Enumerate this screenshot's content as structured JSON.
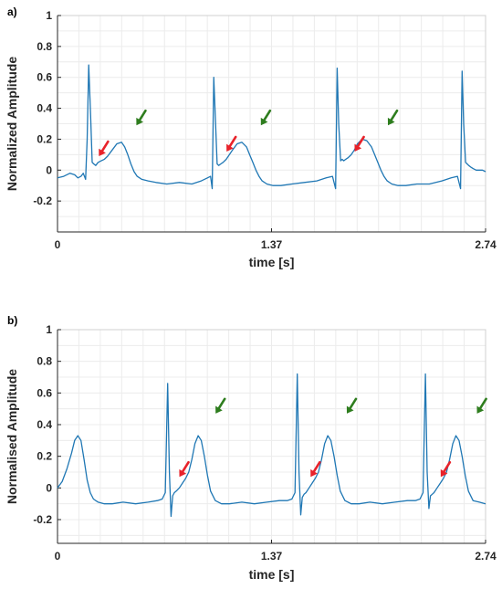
{
  "chart_data": [
    {
      "type": "line",
      "panel_label": "a)",
      "xlabel": "time [s]",
      "ylabel": "Normalized Amplitude",
      "xlim": [
        0,
        2.74
      ],
      "ylim": [
        -0.4,
        1
      ],
      "xticks": [
        0,
        1.37,
        2.74
      ],
      "xtick_labels": [
        "0",
        "1.37",
        "2.74"
      ],
      "yticks": [
        -0.2,
        0,
        0.2,
        0.4,
        0.6,
        0.8,
        1
      ],
      "ytick_labels": [
        "-0.2",
        "0",
        "0.2",
        "0.4",
        "0.6",
        "0.8",
        "1"
      ],
      "grid": true,
      "series": [
        {
          "color": "#1f77b4",
          "x": [
            0,
            0.04,
            0.08,
            0.11,
            0.13,
            0.15,
            0.165,
            0.18,
            0.19,
            0.2,
            0.212,
            0.222,
            0.232,
            0.245,
            0.26,
            0.28,
            0.3,
            0.32,
            0.35,
            0.38,
            0.41,
            0.43,
            0.45,
            0.47,
            0.49,
            0.51,
            0.54,
            0.58,
            0.63,
            0.7,
            0.78,
            0.86,
            0.92,
            0.96,
            0.98,
            0.99,
            1.0,
            1.012,
            1.022,
            1.032,
            1.045,
            1.06,
            1.08,
            1.1,
            1.12,
            1.15,
            1.18,
            1.21,
            1.23,
            1.25,
            1.27,
            1.29,
            1.31,
            1.34,
            1.38,
            1.43,
            1.5,
            1.58,
            1.66,
            1.72,
            1.76,
            1.78,
            1.79,
            1.8,
            1.812,
            1.822,
            1.832,
            1.845,
            1.86,
            1.88,
            1.9,
            1.92,
            1.95,
            1.98,
            2.01,
            2.03,
            2.05,
            2.07,
            2.09,
            2.11,
            2.14,
            2.18,
            2.23,
            2.3,
            2.38,
            2.46,
            2.52,
            2.56,
            2.58,
            2.59,
            2.6,
            2.612,
            2.622,
            2.632,
            2.645,
            2.66,
            2.68,
            2.7,
            2.72,
            2.74
          ],
          "y": [
            -0.05,
            -0.04,
            -0.02,
            -0.03,
            -0.05,
            -0.04,
            -0.02,
            -0.06,
            0.2,
            0.68,
            0.35,
            0.05,
            0.04,
            0.03,
            0.05,
            0.06,
            0.07,
            0.09,
            0.13,
            0.17,
            0.18,
            0.15,
            0.1,
            0.04,
            -0.01,
            -0.04,
            -0.06,
            -0.07,
            -0.08,
            -0.09,
            -0.08,
            -0.09,
            -0.07,
            -0.05,
            -0.04,
            -0.12,
            0.6,
            0.3,
            0.04,
            0.03,
            0.04,
            0.05,
            0.07,
            0.1,
            0.13,
            0.17,
            0.18,
            0.15,
            0.1,
            0.05,
            0.0,
            -0.04,
            -0.07,
            -0.09,
            -0.1,
            -0.1,
            -0.09,
            -0.08,
            -0.07,
            -0.05,
            -0.04,
            -0.12,
            0.66,
            0.3,
            0.06,
            0.07,
            0.06,
            0.07,
            0.08,
            0.1,
            0.13,
            0.17,
            0.2,
            0.19,
            0.15,
            0.1,
            0.05,
            0.0,
            -0.04,
            -0.07,
            -0.09,
            -0.1,
            -0.1,
            -0.09,
            -0.09,
            -0.07,
            -0.05,
            -0.04,
            -0.12,
            0.64,
            0.3,
            0.05,
            0.04,
            0.03,
            0.02,
            0.01,
            0.0,
            0.0,
            0.0,
            -0.01
          ]
        }
      ],
      "annotations": [
        {
          "type": "arrow",
          "color": "#e8222a",
          "x": 0.265,
          "y": 0.09
        },
        {
          "type": "arrow",
          "color": "#2e7d1e",
          "x": 0.505,
          "y": 0.29
        },
        {
          "type": "arrow",
          "color": "#e8222a",
          "x": 1.082,
          "y": 0.12
        },
        {
          "type": "arrow",
          "color": "#2e7d1e",
          "x": 1.302,
          "y": 0.29
        },
        {
          "type": "arrow",
          "color": "#e8222a",
          "x": 1.902,
          "y": 0.12
        },
        {
          "type": "arrow",
          "color": "#2e7d1e",
          "x": 2.115,
          "y": 0.29
        }
      ]
    },
    {
      "type": "line",
      "panel_label": "b)",
      "xlabel": "time [s]",
      "ylabel": "Normalised Amplitude",
      "xlim": [
        0,
        2.74
      ],
      "ylim": [
        -0.35,
        1
      ],
      "xticks": [
        0,
        1.37,
        2.74
      ],
      "xtick_labels": [
        "0",
        "1.37",
        "2.74"
      ],
      "yticks": [
        -0.2,
        0,
        0.2,
        0.4,
        0.6,
        0.8,
        1
      ],
      "ytick_labels": [
        "-0.2",
        "0",
        "0.2",
        "0.4",
        "0.6",
        "0.8",
        "1"
      ],
      "grid": true,
      "series": [
        {
          "color": "#1f77b4",
          "x": [
            0,
            0.03,
            0.06,
            0.09,
            0.11,
            0.13,
            0.15,
            0.17,
            0.19,
            0.21,
            0.23,
            0.26,
            0.3,
            0.35,
            0.42,
            0.5,
            0.58,
            0.64,
            0.67,
            0.69,
            0.705,
            0.716,
            0.727,
            0.737,
            0.748,
            0.76,
            0.78,
            0.8,
            0.82,
            0.84,
            0.86,
            0.88,
            0.9,
            0.92,
            0.94,
            0.96,
            0.98,
            1.01,
            1.05,
            1.1,
            1.18,
            1.26,
            1.34,
            1.42,
            1.47,
            1.5,
            1.52,
            1.535,
            1.546,
            1.557,
            1.567,
            1.578,
            1.59,
            1.61,
            1.63,
            1.65,
            1.67,
            1.69,
            1.71,
            1.73,
            1.75,
            1.77,
            1.79,
            1.81,
            1.84,
            1.88,
            1.93,
            2.0,
            2.08,
            2.16,
            2.24,
            2.29,
            2.32,
            2.34,
            2.355,
            2.366,
            2.377,
            2.387,
            2.398,
            2.41,
            2.43,
            2.45,
            2.47,
            2.49,
            2.51,
            2.53,
            2.55,
            2.57,
            2.59,
            2.61,
            2.63,
            2.66,
            2.7,
            2.74
          ],
          "y": [
            0.0,
            0.04,
            0.12,
            0.22,
            0.3,
            0.33,
            0.3,
            0.18,
            0.05,
            -0.03,
            -0.07,
            -0.09,
            -0.1,
            -0.1,
            -0.09,
            -0.1,
            -0.09,
            -0.08,
            -0.07,
            -0.03,
            0.66,
            0.1,
            -0.18,
            -0.05,
            -0.03,
            -0.02,
            0.0,
            0.03,
            0.06,
            0.1,
            0.18,
            0.28,
            0.33,
            0.3,
            0.2,
            0.08,
            -0.02,
            -0.08,
            -0.1,
            -0.1,
            -0.09,
            -0.1,
            -0.09,
            -0.08,
            -0.08,
            -0.07,
            -0.03,
            0.72,
            0.1,
            -0.17,
            -0.06,
            -0.04,
            -0.03,
            0.0,
            0.03,
            0.06,
            0.1,
            0.18,
            0.28,
            0.33,
            0.3,
            0.2,
            0.08,
            -0.02,
            -0.08,
            -0.1,
            -0.1,
            -0.09,
            -0.1,
            -0.09,
            -0.08,
            -0.08,
            -0.07,
            -0.03,
            0.72,
            0.1,
            -0.13,
            -0.05,
            -0.04,
            -0.03,
            0.0,
            0.03,
            0.06,
            0.1,
            0.18,
            0.28,
            0.33,
            0.3,
            0.2,
            0.08,
            -0.02,
            -0.08,
            -0.09,
            -0.1
          ]
        }
      ],
      "annotations": [
        {
          "type": "arrow",
          "color": "#e8222a",
          "x": 0.78,
          "y": 0.07
        },
        {
          "type": "arrow",
          "color": "#2e7d1e",
          "x": 1.012,
          "y": 0.47
        },
        {
          "type": "arrow",
          "color": "#e8222a",
          "x": 1.62,
          "y": 0.07
        },
        {
          "type": "arrow",
          "color": "#2e7d1e",
          "x": 1.852,
          "y": 0.47
        },
        {
          "type": "arrow",
          "color": "#e8222a",
          "x": 2.453,
          "y": 0.07
        },
        {
          "type": "arrow",
          "color": "#2e7d1e",
          "x": 2.685,
          "y": 0.47
        }
      ]
    }
  ]
}
